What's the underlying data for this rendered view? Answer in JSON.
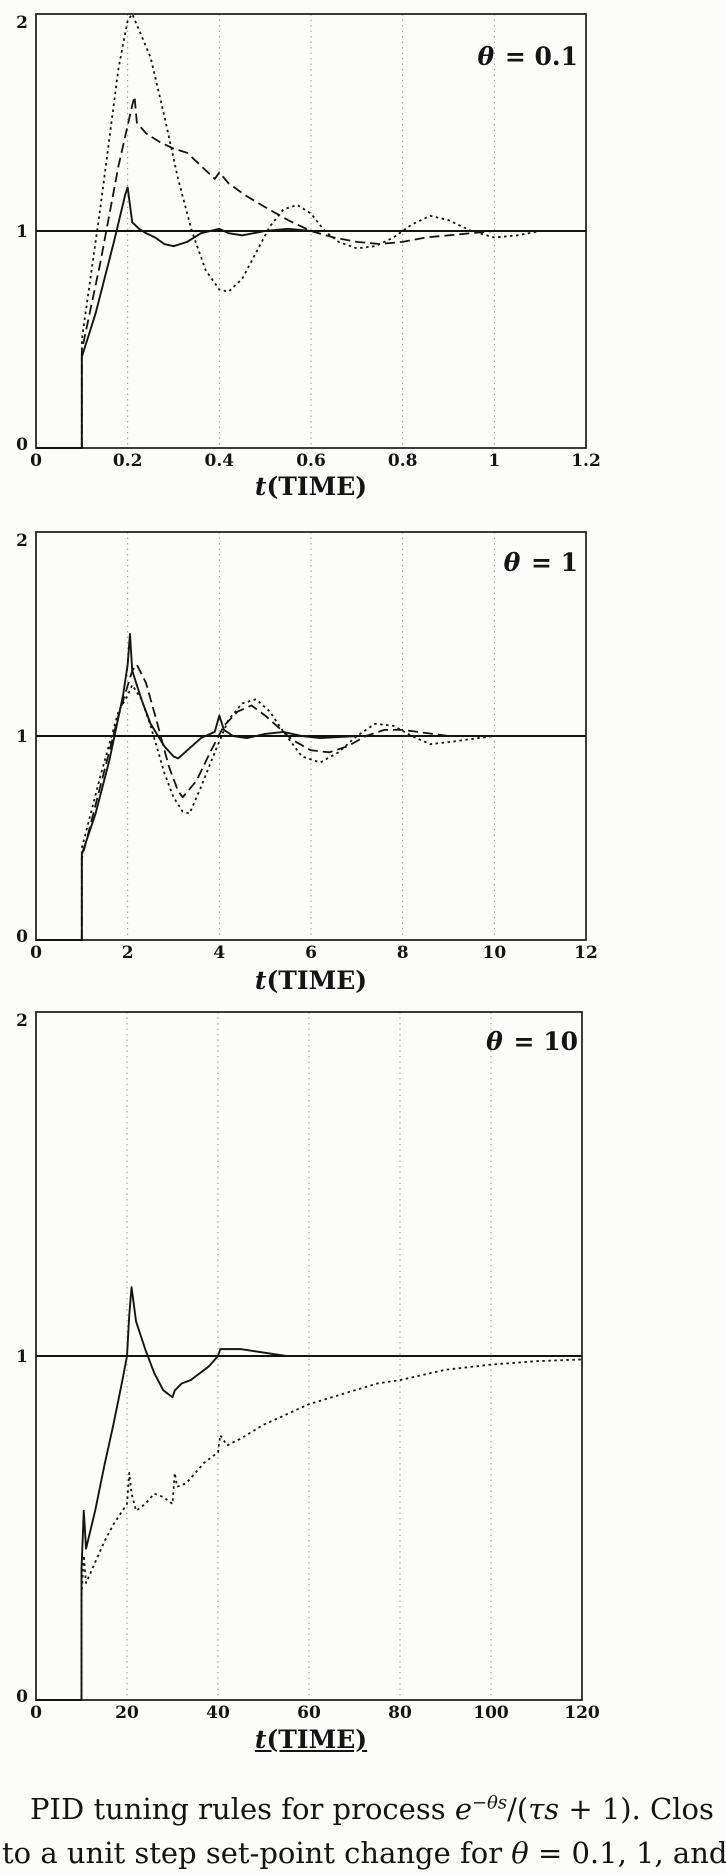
{
  "figure": {
    "caption": {
      "line1_prefix": "PID tuning rules for process ",
      "exp_base": "e",
      "exp_sup": "−θs",
      "frac_open": "/(",
      "frac_var": "τs",
      "frac_close": " + 1).  Clos",
      "line2_prefix": "to a unit step set-point change for ",
      "line2_symbol": "θ",
      "line2_rest": " = 0.1, 1, and"
    }
  },
  "chart_data": [
    {
      "type": "line",
      "annotation_symbol": "θ",
      "annotation_rest": " = 0.1",
      "xlabel_var": "t",
      "xlabel_rest": "(TIME)",
      "xlim": [
        0,
        1.2
      ],
      "ylim": [
        0,
        2
      ],
      "xticks": [
        0,
        0.2,
        0.4,
        0.6,
        0.8,
        1,
        1.2
      ],
      "xtick_labels": [
        "0",
        "0.2",
        "0.4",
        "0.6",
        "0.8",
        "1",
        "1.2"
      ],
      "yticks": [
        0,
        1,
        2
      ],
      "ytick_labels": [
        "0",
        "1",
        "2"
      ],
      "grid_x": [
        0.2,
        0.4,
        0.6,
        0.8,
        1
      ],
      "reference_y": 1,
      "grid": "vertical-dotted",
      "legend": "none",
      "series": [
        {
          "name": "series-solid-curve",
          "style": "solid",
          "x": [
            0,
            0.1,
            0.1,
            0.13,
            0.17,
            0.195,
            0.2,
            0.21,
            0.225,
            0.24,
            0.26,
            0.28,
            0.3,
            0.33,
            0.36,
            0.4,
            0.42,
            0.45,
            0.5,
            0.55,
            0.6,
            0.65,
            0.7,
            0.8,
            0.9,
            1.0,
            1.1,
            1.2
          ],
          "y": [
            0,
            0,
            0.42,
            0.62,
            0.95,
            1.17,
            1.2,
            1.04,
            1.01,
            0.99,
            0.97,
            0.94,
            0.93,
            0.95,
            0.99,
            1.01,
            0.99,
            0.98,
            1.0,
            1.01,
            1.0,
            1.0,
            1.0,
            1.0,
            1.0,
            1.0,
            1.0,
            1.0
          ]
        },
        {
          "name": "series-long-dash-curve",
          "style": "dashed",
          "x": [
            0,
            0.1,
            0.1,
            0.14,
            0.18,
            0.21,
            0.215,
            0.22,
            0.24,
            0.27,
            0.3,
            0.33,
            0.36,
            0.39,
            0.4,
            0.42,
            0.46,
            0.5,
            0.55,
            0.6,
            0.65,
            0.7,
            0.75,
            0.8,
            0.85,
            0.9,
            1.0,
            1.1,
            1.2
          ],
          "y": [
            0,
            0,
            0.45,
            0.85,
            1.3,
            1.58,
            1.62,
            1.5,
            1.45,
            1.41,
            1.38,
            1.36,
            1.3,
            1.24,
            1.27,
            1.22,
            1.16,
            1.11,
            1.05,
            1.0,
            0.97,
            0.95,
            0.94,
            0.95,
            0.97,
            0.98,
            1.0,
            1.0,
            1.0
          ]
        },
        {
          "name": "series-short-dash-curve",
          "style": "dotted",
          "x": [
            0,
            0.1,
            0.1,
            0.14,
            0.18,
            0.2,
            0.21,
            0.23,
            0.25,
            0.28,
            0.31,
            0.34,
            0.37,
            0.4,
            0.42,
            0.45,
            0.48,
            0.51,
            0.54,
            0.57,
            0.6,
            0.63,
            0.66,
            0.7,
            0.74,
            0.78,
            0.82,
            0.86,
            0.9,
            0.95,
            1.0,
            1.05,
            1.1,
            1.2
          ],
          "y": [
            0,
            0,
            0.5,
            1.1,
            1.75,
            1.97,
            2.0,
            1.9,
            1.8,
            1.53,
            1.24,
            1.0,
            0.82,
            0.73,
            0.72,
            0.78,
            0.9,
            1.02,
            1.1,
            1.12,
            1.08,
            1.0,
            0.95,
            0.92,
            0.93,
            0.97,
            1.03,
            1.07,
            1.05,
            1.0,
            0.97,
            0.98,
            1.0,
            1.0
          ]
        }
      ]
    },
    {
      "type": "line",
      "annotation_symbol": "θ",
      "annotation_rest": " = 1",
      "xlabel_var": "t",
      "xlabel_rest": "(TIME)",
      "xlim": [
        0,
        12
      ],
      "ylim": [
        0,
        2
      ],
      "xticks": [
        0,
        2,
        4,
        6,
        8,
        10,
        12
      ],
      "xtick_labels": [
        "0",
        "2",
        "4",
        "6",
        "8",
        "10",
        "12"
      ],
      "yticks": [
        0,
        1,
        2
      ],
      "ytick_labels": [
        "0",
        "1",
        "2"
      ],
      "grid_x": [
        2,
        4,
        6,
        8,
        10
      ],
      "reference_y": 1,
      "grid": "vertical-dotted",
      "legend": "none",
      "series": [
        {
          "name": "series-solid-curve",
          "style": "solid",
          "x": [
            0,
            1,
            1,
            1.3,
            1.6,
            1.9,
            2.0,
            2.05,
            2.1,
            2.3,
            2.5,
            2.8,
            3.0,
            3.1,
            3.3,
            3.6,
            3.9,
            4.0,
            4.1,
            4.3,
            4.6,
            5.0,
            5.4,
            5.8,
            6.2,
            7,
            8,
            9,
            10,
            11,
            12
          ],
          "y": [
            0,
            0,
            0.42,
            0.62,
            0.88,
            1.2,
            1.35,
            1.5,
            1.32,
            1.18,
            1.06,
            0.95,
            0.9,
            0.89,
            0.93,
            0.99,
            1.02,
            1.1,
            1.03,
            1.0,
            0.99,
            1.01,
            1.02,
            1.0,
            0.99,
            1.0,
            1.0,
            1.0,
            1.0,
            1.0,
            1.0
          ]
        },
        {
          "name": "series-long-dash-curve",
          "style": "dashed",
          "x": [
            0,
            1,
            1,
            1.4,
            1.8,
            2.1,
            2.2,
            2.4,
            2.6,
            2.9,
            3.1,
            3.2,
            3.5,
            3.8,
            4.1,
            4.4,
            4.7,
            5.0,
            5.3,
            5.6,
            6.0,
            6.4,
            6.8,
            7.2,
            7.6,
            8,
            9,
            10,
            11,
            12
          ],
          "y": [
            0,
            0,
            0.4,
            0.75,
            1.1,
            1.32,
            1.35,
            1.26,
            1.1,
            0.85,
            0.73,
            0.7,
            0.78,
            0.92,
            1.05,
            1.12,
            1.15,
            1.1,
            1.04,
            0.98,
            0.93,
            0.92,
            0.95,
            1.0,
            1.03,
            1.03,
            1.0,
            1.0,
            1.0,
            1.0
          ]
        },
        {
          "name": "series-short-dash-curve",
          "style": "dotted",
          "x": [
            0,
            1,
            1,
            1.4,
            1.8,
            2.0,
            2.1,
            2.3,
            2.5,
            2.8,
            3.0,
            3.2,
            3.35,
            3.6,
            3.9,
            4.2,
            4.5,
            4.8,
            5.1,
            5.4,
            5.8,
            6.2,
            6.6,
            7.0,
            7.4,
            7.8,
            8.2,
            8.6,
            9,
            10,
            11,
            12
          ],
          "y": [
            0,
            0,
            0.45,
            0.8,
            1.12,
            1.2,
            1.25,
            1.18,
            1.05,
            0.82,
            0.7,
            0.63,
            0.62,
            0.75,
            0.92,
            1.08,
            1.16,
            1.18,
            1.12,
            1.02,
            0.9,
            0.87,
            0.92,
            1.0,
            1.06,
            1.05,
            1.0,
            0.96,
            0.97,
            1.0,
            1.0,
            1.0
          ]
        }
      ]
    },
    {
      "type": "line",
      "annotation_symbol": "θ",
      "annotation_rest": " = 10",
      "xlabel_var": "t",
      "xlabel_rest": "(TIME)",
      "xlim": [
        0,
        120
      ],
      "ylim": [
        0,
        2
      ],
      "xticks": [
        0,
        20,
        40,
        60,
        80,
        100,
        120
      ],
      "xtick_labels": [
        "0",
        "20",
        "40",
        "60",
        "80",
        "100",
        "120"
      ],
      "yticks": [
        0,
        1,
        2
      ],
      "ytick_labels": [
        "0",
        "1",
        "2"
      ],
      "grid_x": [
        20,
        40,
        60,
        80,
        100
      ],
      "reference_y": 1,
      "grid": "vertical-dotted",
      "legend": "none",
      "series": [
        {
          "name": "series-solid-curve",
          "style": "solid",
          "x": [
            0,
            10,
            10,
            10.5,
            11,
            13,
            15,
            17,
            19,
            20,
            20.5,
            21,
            22,
            24,
            26,
            28,
            30,
            30.5,
            32,
            34,
            36,
            38,
            40,
            40.5,
            42,
            45,
            50,
            55,
            60,
            70,
            80,
            100,
            120
          ],
          "y": [
            0,
            0,
            0.38,
            0.55,
            0.44,
            0.55,
            0.68,
            0.8,
            0.93,
            1.0,
            1.12,
            1.2,
            1.1,
            1.02,
            0.95,
            0.9,
            0.88,
            0.9,
            0.92,
            0.93,
            0.95,
            0.97,
            1.0,
            1.02,
            1.02,
            1.02,
            1.01,
            1.0,
            1.0,
            1.0,
            1.0,
            1.0,
            1.0
          ]
        },
        {
          "name": "series-short-dash-curve",
          "style": "dotted",
          "x": [
            0,
            10,
            10,
            10.5,
            11,
            13,
            15,
            17,
            19,
            20,
            20.5,
            21,
            22,
            24,
            26,
            28,
            30,
            30.5,
            31,
            33,
            35,
            37,
            39,
            40,
            40.5,
            42,
            45,
            50,
            55,
            60,
            65,
            70,
            75,
            80,
            90,
            100,
            110,
            120
          ],
          "y": [
            0,
            0,
            0.3,
            0.42,
            0.34,
            0.4,
            0.46,
            0.51,
            0.55,
            0.57,
            0.66,
            0.6,
            0.55,
            0.57,
            0.6,
            0.59,
            0.57,
            0.66,
            0.62,
            0.63,
            0.66,
            0.69,
            0.71,
            0.72,
            0.77,
            0.74,
            0.76,
            0.8,
            0.83,
            0.86,
            0.88,
            0.9,
            0.92,
            0.93,
            0.96,
            0.975,
            0.985,
            0.99
          ]
        }
      ]
    }
  ]
}
